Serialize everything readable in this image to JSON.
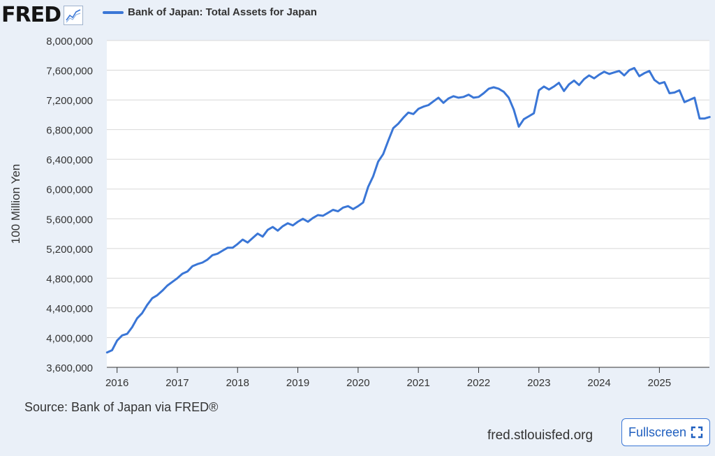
{
  "logo": {
    "text": "FRED",
    "icon": "line-chart-icon"
  },
  "legend": {
    "label": "Bank of Japan: Total Assets for Japan",
    "color": "#3a76d6"
  },
  "footer": {
    "source": "Source: Bank of Japan via FRED®",
    "site": "fred.stlouisfed.org",
    "fullscreen_label": "Fullscreen",
    "fullscreen_icon": "expand-icon"
  },
  "chart_data": {
    "type": "line",
    "title": "",
    "xlabel": "",
    "ylabel": "100 Million Yen",
    "xlim": [
      2015.83,
      2025.83
    ],
    "ylim": [
      3600000,
      8000000
    ],
    "y_ticks": [
      3600000,
      4000000,
      4400000,
      4800000,
      5200000,
      5600000,
      6000000,
      6400000,
      6800000,
      7200000,
      7600000,
      8000000
    ],
    "y_tick_labels": [
      "3,600,000",
      "4,000,000",
      "4,400,000",
      "4,800,000",
      "5,200,000",
      "5,600,000",
      "6,000,000",
      "6,400,000",
      "6,800,000",
      "7,200,000",
      "7,600,000",
      "8,000,000"
    ],
    "x_ticks": [
      2016,
      2017,
      2018,
      2019,
      2020,
      2021,
      2022,
      2023,
      2024,
      2025
    ],
    "x_tick_labels": [
      "2016",
      "2017",
      "2018",
      "2019",
      "2020",
      "2021",
      "2022",
      "2023",
      "2024",
      "2025"
    ],
    "grid": "horizontal",
    "series": [
      {
        "name": "Bank of Japan: Total Assets for Japan",
        "color": "#3a76d6",
        "points": [
          [
            "2015-11",
            3800000
          ],
          [
            "2015-12",
            3830000
          ],
          [
            "2016-01",
            3960000
          ],
          [
            "2016-02",
            4030000
          ],
          [
            "2016-03",
            4050000
          ],
          [
            "2016-04",
            4140000
          ],
          [
            "2016-05",
            4260000
          ],
          [
            "2016-06",
            4330000
          ],
          [
            "2016-07",
            4440000
          ],
          [
            "2016-08",
            4530000
          ],
          [
            "2016-09",
            4570000
          ],
          [
            "2016-10",
            4630000
          ],
          [
            "2016-11",
            4700000
          ],
          [
            "2016-12",
            4750000
          ],
          [
            "2017-01",
            4800000
          ],
          [
            "2017-02",
            4860000
          ],
          [
            "2017-03",
            4890000
          ],
          [
            "2017-04",
            4960000
          ],
          [
            "2017-05",
            4990000
          ],
          [
            "2017-06",
            5010000
          ],
          [
            "2017-07",
            5050000
          ],
          [
            "2017-08",
            5110000
          ],
          [
            "2017-09",
            5130000
          ],
          [
            "2017-10",
            5170000
          ],
          [
            "2017-11",
            5210000
          ],
          [
            "2017-12",
            5210000
          ],
          [
            "2018-01",
            5260000
          ],
          [
            "2018-02",
            5320000
          ],
          [
            "2018-03",
            5280000
          ],
          [
            "2018-04",
            5340000
          ],
          [
            "2018-05",
            5400000
          ],
          [
            "2018-06",
            5360000
          ],
          [
            "2018-07",
            5450000
          ],
          [
            "2018-08",
            5490000
          ],
          [
            "2018-09",
            5440000
          ],
          [
            "2018-10",
            5500000
          ],
          [
            "2018-11",
            5540000
          ],
          [
            "2018-12",
            5510000
          ],
          [
            "2019-01",
            5560000
          ],
          [
            "2019-02",
            5600000
          ],
          [
            "2019-03",
            5560000
          ],
          [
            "2019-04",
            5610000
          ],
          [
            "2019-05",
            5650000
          ],
          [
            "2019-06",
            5640000
          ],
          [
            "2019-07",
            5680000
          ],
          [
            "2019-08",
            5720000
          ],
          [
            "2019-09",
            5700000
          ],
          [
            "2019-10",
            5750000
          ],
          [
            "2019-11",
            5770000
          ],
          [
            "2019-12",
            5730000
          ],
          [
            "2020-01",
            5770000
          ],
          [
            "2020-02",
            5820000
          ],
          [
            "2020-03",
            6030000
          ],
          [
            "2020-04",
            6170000
          ],
          [
            "2020-05",
            6370000
          ],
          [
            "2020-06",
            6470000
          ],
          [
            "2020-07",
            6650000
          ],
          [
            "2020-08",
            6820000
          ],
          [
            "2020-09",
            6880000
          ],
          [
            "2020-10",
            6960000
          ],
          [
            "2020-11",
            7030000
          ],
          [
            "2020-12",
            7010000
          ],
          [
            "2021-01",
            7080000
          ],
          [
            "2021-02",
            7110000
          ],
          [
            "2021-03",
            7130000
          ],
          [
            "2021-04",
            7180000
          ],
          [
            "2021-05",
            7230000
          ],
          [
            "2021-06",
            7160000
          ],
          [
            "2021-07",
            7220000
          ],
          [
            "2021-08",
            7250000
          ],
          [
            "2021-09",
            7230000
          ],
          [
            "2021-10",
            7240000
          ],
          [
            "2021-11",
            7270000
          ],
          [
            "2021-12",
            7230000
          ],
          [
            "2022-01",
            7240000
          ],
          [
            "2022-02",
            7290000
          ],
          [
            "2022-03",
            7350000
          ],
          [
            "2022-04",
            7370000
          ],
          [
            "2022-05",
            7350000
          ],
          [
            "2022-06",
            7310000
          ],
          [
            "2022-07",
            7230000
          ],
          [
            "2022-08",
            7070000
          ],
          [
            "2022-09",
            6840000
          ],
          [
            "2022-10",
            6940000
          ],
          [
            "2022-11",
            6980000
          ],
          [
            "2022-12",
            7020000
          ],
          [
            "2023-01",
            7330000
          ],
          [
            "2023-02",
            7380000
          ],
          [
            "2023-03",
            7340000
          ],
          [
            "2023-04",
            7380000
          ],
          [
            "2023-05",
            7430000
          ],
          [
            "2023-06",
            7320000
          ],
          [
            "2023-07",
            7410000
          ],
          [
            "2023-08",
            7460000
          ],
          [
            "2023-09",
            7400000
          ],
          [
            "2023-10",
            7480000
          ],
          [
            "2023-11",
            7530000
          ],
          [
            "2023-12",
            7490000
          ],
          [
            "2024-01",
            7540000
          ],
          [
            "2024-02",
            7580000
          ],
          [
            "2024-03",
            7550000
          ],
          [
            "2024-04",
            7570000
          ],
          [
            "2024-05",
            7590000
          ],
          [
            "2024-06",
            7530000
          ],
          [
            "2024-07",
            7600000
          ],
          [
            "2024-08",
            7630000
          ],
          [
            "2024-09",
            7520000
          ],
          [
            "2024-10",
            7560000
          ],
          [
            "2024-11",
            7590000
          ],
          [
            "2024-12",
            7470000
          ],
          [
            "2025-01",
            7420000
          ],
          [
            "2025-02",
            7440000
          ],
          [
            "2025-03",
            7290000
          ],
          [
            "2025-04",
            7300000
          ],
          [
            "2025-05",
            7330000
          ],
          [
            "2025-06",
            7170000
          ],
          [
            "2025-07",
            7200000
          ],
          [
            "2025-08",
            7230000
          ],
          [
            "2025-09",
            6950000
          ],
          [
            "2025-10",
            6950000
          ],
          [
            "2025-11",
            6970000
          ]
        ]
      }
    ]
  }
}
